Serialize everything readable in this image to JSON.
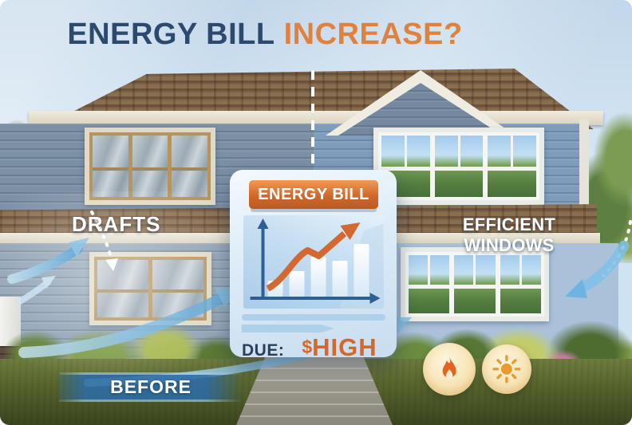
{
  "title": {
    "text_navy": "ENERGY BILL",
    "text_orange": "INCREASE?"
  },
  "annotations": {
    "drafts_label": "DRAFTS",
    "efficient_windows_label": "EFFICIENT WINDOWS",
    "before_label": "BEFORE"
  },
  "bill_card": {
    "header": "ENERGY BILL",
    "due_label": "DUE:",
    "amount_currency": "$",
    "amount_value": "HIGH"
  },
  "icons": {
    "flame": "flame-icon",
    "sun": "sun-icon",
    "trend_arrow": "trend-up-arrow-icon",
    "draft_wind": "draft-wind-arrows-icon",
    "inward_air": "down-left-arrow-icon",
    "divider": "dashed-divider-line"
  },
  "colors": {
    "title_navy": "#2b4a6e",
    "title_orange": "#e0813d",
    "card_banner_orange": "#cf6527",
    "amount_orange": "#d4682a",
    "chart_axis_blue": "#2d5f92",
    "draft_arrow_blue": "#7fc0e8",
    "before_banner_blue": "#2d6ca6",
    "badge_cream": "#f7e3b4",
    "flame_orange": "#e2641f",
    "sun_orange": "#eb9b2d",
    "siding_blue": "#7f9cbd",
    "roof_brown": "#7c6247"
  },
  "chart_data": {
    "type": "bar",
    "title": "ENERGY BILL",
    "categories": [
      "",
      "",
      "",
      "",
      ""
    ],
    "values": [
      20,
      32,
      50,
      45,
      66
    ],
    "xlabel": "",
    "ylabel": "",
    "ylim": [
      0,
      80
    ],
    "grid": false,
    "legend": null,
    "annotations": [
      "orange rising zigzag trend arrow over the bars",
      "axes drawn as dark blue arrows, no tick labels"
    ]
  }
}
